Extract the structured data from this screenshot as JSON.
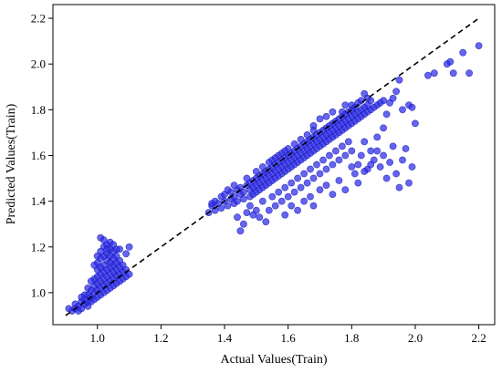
{
  "chart_data": {
    "type": "scatter",
    "title": "",
    "xlabel": "Actual Values(Train)",
    "ylabel": "Predicted Values(Train)",
    "xlim": [
      0.86,
      2.25
    ],
    "ylim": [
      0.86,
      2.26
    ],
    "xticks": [
      1.0,
      1.2,
      1.4,
      1.6,
      1.8,
      2.0,
      2.2
    ],
    "yticks": [
      1.0,
      1.2,
      1.4,
      1.6,
      1.8,
      2.0,
      2.2
    ],
    "xtick_labels": [
      "1.0",
      "1.2",
      "1.4",
      "1.6",
      "1.8",
      "2.0",
      "2.2"
    ],
    "ytick_labels": [
      "1.0",
      "1.2",
      "1.4",
      "1.6",
      "1.8",
      "2.0",
      "2.2"
    ],
    "grid": false,
    "reference_line": {
      "style": "dashed",
      "color": "#000000",
      "from": [
        0.9,
        0.9
      ],
      "to": [
        2.2,
        2.2
      ]
    },
    "point_color": "#2a2ae8",
    "points": [
      [
        0.91,
        0.93
      ],
      [
        0.92,
        0.92
      ],
      [
        0.93,
        0.93
      ],
      [
        0.93,
        0.95
      ],
      [
        0.94,
        0.92
      ],
      [
        0.94,
        0.94
      ],
      [
        0.95,
        0.93
      ],
      [
        0.95,
        0.96
      ],
      [
        0.96,
        0.95
      ],
      [
        0.96,
        0.97
      ],
      [
        0.97,
        0.94
      ],
      [
        0.97,
        0.96
      ],
      [
        0.97,
        0.99
      ],
      [
        0.98,
        0.96
      ],
      [
        0.98,
        0.98
      ],
      [
        0.98,
        1.01
      ],
      [
        0.99,
        0.97
      ],
      [
        0.99,
        1.0
      ],
      [
        0.99,
        1.03
      ],
      [
        0.99,
        1.06
      ],
      [
        1.0,
        0.98
      ],
      [
        1.0,
        1.01
      ],
      [
        1.0,
        1.04
      ],
      [
        1.0,
        1.07
      ],
      [
        1.0,
        1.1
      ],
      [
        1.0,
        1.13
      ],
      [
        1.01,
        0.99
      ],
      [
        1.01,
        1.02
      ],
      [
        1.01,
        1.05
      ],
      [
        1.01,
        1.08
      ],
      [
        1.01,
        1.11
      ],
      [
        1.01,
        1.15
      ],
      [
        1.01,
        1.18
      ],
      [
        1.02,
        1.0
      ],
      [
        1.02,
        1.03
      ],
      [
        1.02,
        1.06
      ],
      [
        1.02,
        1.09
      ],
      [
        1.02,
        1.12
      ],
      [
        1.02,
        1.16
      ],
      [
        1.02,
        1.2
      ],
      [
        1.03,
        1.01
      ],
      [
        1.03,
        1.04
      ],
      [
        1.03,
        1.07
      ],
      [
        1.03,
        1.1
      ],
      [
        1.03,
        1.14
      ],
      [
        1.03,
        1.17
      ],
      [
        1.03,
        1.21
      ],
      [
        1.04,
        1.02
      ],
      [
        1.04,
        1.05
      ],
      [
        1.04,
        1.08
      ],
      [
        1.04,
        1.11
      ],
      [
        1.04,
        1.13
      ],
      [
        1.04,
        1.16
      ],
      [
        1.04,
        1.19
      ],
      [
        1.04,
        1.22
      ],
      [
        1.05,
        1.03
      ],
      [
        1.05,
        1.06
      ],
      [
        1.05,
        1.09
      ],
      [
        1.05,
        1.12
      ],
      [
        1.05,
        1.15
      ],
      [
        1.05,
        1.18
      ],
      [
        1.06,
        1.04
      ],
      [
        1.06,
        1.07
      ],
      [
        1.06,
        1.1
      ],
      [
        1.06,
        1.13
      ],
      [
        1.06,
        1.16
      ],
      [
        1.07,
        1.05
      ],
      [
        1.07,
        1.08
      ],
      [
        1.07,
        1.11
      ],
      [
        1.07,
        1.14
      ],
      [
        1.08,
        1.06
      ],
      [
        1.08,
        1.09
      ],
      [
        1.08,
        1.12
      ],
      [
        1.09,
        1.07
      ],
      [
        1.09,
        1.1
      ],
      [
        1.1,
        1.08
      ],
      [
        1.1,
        1.2
      ],
      [
        1.09,
        1.17
      ],
      [
        1.07,
        1.19
      ],
      [
        1.01,
        1.24
      ],
      [
        0.99,
        1.12
      ],
      [
        0.98,
        1.05
      ],
      [
        1.0,
        1.16
      ],
      [
        1.02,
        1.23
      ],
      [
        1.03,
        1.19
      ],
      [
        1.05,
        1.21
      ],
      [
        1.06,
        1.19
      ],
      [
        0.96,
        0.99
      ],
      [
        0.97,
        1.02
      ],
      [
        0.95,
        0.98
      ],
      [
        1.35,
        1.35
      ],
      [
        1.36,
        1.38
      ],
      [
        1.37,
        1.36
      ],
      [
        1.38,
        1.39
      ],
      [
        1.39,
        1.37
      ],
      [
        1.4,
        1.4
      ],
      [
        1.4,
        1.43
      ],
      [
        1.41,
        1.38
      ],
      [
        1.42,
        1.41
      ],
      [
        1.42,
        1.44
      ],
      [
        1.43,
        1.39
      ],
      [
        1.43,
        1.42
      ],
      [
        1.44,
        1.45
      ],
      [
        1.44,
        1.4
      ],
      [
        1.45,
        1.43
      ],
      [
        1.45,
        1.46
      ],
      [
        1.46,
        1.41
      ],
      [
        1.46,
        1.44
      ],
      [
        1.47,
        1.47
      ],
      [
        1.47,
        1.5
      ],
      [
        1.48,
        1.42
      ],
      [
        1.48,
        1.45
      ],
      [
        1.48,
        1.48
      ],
      [
        1.49,
        1.43
      ],
      [
        1.49,
        1.46
      ],
      [
        1.49,
        1.49
      ],
      [
        1.5,
        1.44
      ],
      [
        1.5,
        1.47
      ],
      [
        1.5,
        1.5
      ],
      [
        1.5,
        1.53
      ],
      [
        1.51,
        1.45
      ],
      [
        1.51,
        1.48
      ],
      [
        1.51,
        1.51
      ],
      [
        1.52,
        1.46
      ],
      [
        1.52,
        1.49
      ],
      [
        1.52,
        1.52
      ],
      [
        1.52,
        1.55
      ],
      [
        1.53,
        1.47
      ],
      [
        1.53,
        1.5
      ],
      [
        1.53,
        1.53
      ],
      [
        1.54,
        1.48
      ],
      [
        1.54,
        1.51
      ],
      [
        1.54,
        1.54
      ],
      [
        1.54,
        1.57
      ],
      [
        1.55,
        1.49
      ],
      [
        1.55,
        1.52
      ],
      [
        1.55,
        1.55
      ],
      [
        1.55,
        1.58
      ],
      [
        1.56,
        1.5
      ],
      [
        1.56,
        1.53
      ],
      [
        1.56,
        1.56
      ],
      [
        1.56,
        1.59
      ],
      [
        1.57,
        1.51
      ],
      [
        1.57,
        1.54
      ],
      [
        1.57,
        1.57
      ],
      [
        1.57,
        1.6
      ],
      [
        1.58,
        1.52
      ],
      [
        1.58,
        1.55
      ],
      [
        1.58,
        1.58
      ],
      [
        1.58,
        1.61
      ],
      [
        1.59,
        1.53
      ],
      [
        1.59,
        1.56
      ],
      [
        1.59,
        1.59
      ],
      [
        1.59,
        1.62
      ],
      [
        1.6,
        1.54
      ],
      [
        1.6,
        1.57
      ],
      [
        1.6,
        1.6
      ],
      [
        1.6,
        1.63
      ],
      [
        1.61,
        1.55
      ],
      [
        1.61,
        1.58
      ],
      [
        1.61,
        1.61
      ],
      [
        1.62,
        1.56
      ],
      [
        1.62,
        1.59
      ],
      [
        1.62,
        1.62
      ],
      [
        1.62,
        1.65
      ],
      [
        1.63,
        1.57
      ],
      [
        1.63,
        1.6
      ],
      [
        1.63,
        1.63
      ],
      [
        1.64,
        1.58
      ],
      [
        1.64,
        1.61
      ],
      [
        1.64,
        1.64
      ],
      [
        1.64,
        1.67
      ],
      [
        1.65,
        1.59
      ],
      [
        1.65,
        1.62
      ],
      [
        1.65,
        1.65
      ],
      [
        1.66,
        1.6
      ],
      [
        1.66,
        1.63
      ],
      [
        1.66,
        1.66
      ],
      [
        1.66,
        1.69
      ],
      [
        1.67,
        1.61
      ],
      [
        1.67,
        1.64
      ],
      [
        1.67,
        1.67
      ],
      [
        1.68,
        1.62
      ],
      [
        1.68,
        1.65
      ],
      [
        1.68,
        1.68
      ],
      [
        1.68,
        1.71
      ],
      [
        1.69,
        1.63
      ],
      [
        1.69,
        1.66
      ],
      [
        1.69,
        1.69
      ],
      [
        1.7,
        1.64
      ],
      [
        1.7,
        1.67
      ],
      [
        1.7,
        1.7
      ],
      [
        1.71,
        1.65
      ],
      [
        1.71,
        1.68
      ],
      [
        1.71,
        1.71
      ],
      [
        1.72,
        1.66
      ],
      [
        1.72,
        1.69
      ],
      [
        1.72,
        1.72
      ],
      [
        1.73,
        1.67
      ],
      [
        1.73,
        1.7
      ],
      [
        1.73,
        1.73
      ],
      [
        1.74,
        1.68
      ],
      [
        1.74,
        1.71
      ],
      [
        1.74,
        1.74
      ],
      [
        1.75,
        1.69
      ],
      [
        1.75,
        1.72
      ],
      [
        1.75,
        1.75
      ],
      [
        1.76,
        1.7
      ],
      [
        1.76,
        1.73
      ],
      [
        1.76,
        1.76
      ],
      [
        1.77,
        1.71
      ],
      [
        1.77,
        1.74
      ],
      [
        1.77,
        1.77
      ],
      [
        1.78,
        1.72
      ],
      [
        1.78,
        1.75
      ],
      [
        1.78,
        1.78
      ],
      [
        1.79,
        1.73
      ],
      [
        1.79,
        1.76
      ],
      [
        1.79,
        1.79
      ],
      [
        1.8,
        1.74
      ],
      [
        1.8,
        1.77
      ],
      [
        1.8,
        1.8
      ],
      [
        1.81,
        1.75
      ],
      [
        1.81,
        1.78
      ],
      [
        1.81,
        1.81
      ],
      [
        1.82,
        1.76
      ],
      [
        1.82,
        1.79
      ],
      [
        1.82,
        1.83
      ],
      [
        1.83,
        1.77
      ],
      [
        1.83,
        1.8
      ],
      [
        1.84,
        1.78
      ],
      [
        1.84,
        1.81
      ],
      [
        1.85,
        1.79
      ],
      [
        1.85,
        1.82
      ],
      [
        1.86,
        1.8
      ],
      [
        1.86,
        1.84
      ],
      [
        1.87,
        1.81
      ],
      [
        1.88,
        1.82
      ],
      [
        1.89,
        1.83
      ],
      [
        1.9,
        1.84
      ],
      [
        1.52,
        1.4
      ],
      [
        1.54,
        1.36
      ],
      [
        1.55,
        1.42
      ],
      [
        1.56,
        1.38
      ],
      [
        1.57,
        1.44
      ],
      [
        1.58,
        1.4
      ],
      [
        1.59,
        1.46
      ],
      [
        1.6,
        1.42
      ],
      [
        1.61,
        1.48
      ],
      [
        1.62,
        1.44
      ],
      [
        1.63,
        1.5
      ],
      [
        1.64,
        1.46
      ],
      [
        1.65,
        1.52
      ],
      [
        1.66,
        1.48
      ],
      [
        1.67,
        1.54
      ],
      [
        1.68,
        1.5
      ],
      [
        1.69,
        1.56
      ],
      [
        1.7,
        1.52
      ],
      [
        1.71,
        1.58
      ],
      [
        1.72,
        1.54
      ],
      [
        1.73,
        1.6
      ],
      [
        1.74,
        1.56
      ],
      [
        1.75,
        1.62
      ],
      [
        1.76,
        1.58
      ],
      [
        1.77,
        1.64
      ],
      [
        1.78,
        1.6
      ],
      [
        1.79,
        1.66
      ],
      [
        1.8,
        1.62
      ],
      [
        1.81,
        1.52
      ],
      [
        1.82,
        1.56
      ],
      [
        1.83,
        1.6
      ],
      [
        1.84,
        1.66
      ],
      [
        1.85,
        1.54
      ],
      [
        1.86,
        1.62
      ],
      [
        1.87,
        1.58
      ],
      [
        1.88,
        1.68
      ],
      [
        1.89,
        1.55
      ],
      [
        1.9,
        1.6
      ],
      [
        1.91,
        1.5
      ],
      [
        1.92,
        1.57
      ],
      [
        1.93,
        1.64
      ],
      [
        1.94,
        1.52
      ],
      [
        1.95,
        1.46
      ],
      [
        1.97,
        1.63
      ],
      [
        1.98,
        1.48
      ],
      [
        1.96,
        1.58
      ],
      [
        1.99,
        1.55
      ],
      [
        1.5,
        1.36
      ],
      [
        1.51,
        1.33
      ],
      [
        1.53,
        1.31
      ],
      [
        1.46,
        1.3
      ],
      [
        1.45,
        1.27
      ],
      [
        1.44,
        1.33
      ],
      [
        1.47,
        1.35
      ],
      [
        1.48,
        1.38
      ],
      [
        1.49,
        1.34
      ],
      [
        1.59,
        1.34
      ],
      [
        1.61,
        1.38
      ],
      [
        1.63,
        1.36
      ],
      [
        1.65,
        1.4
      ],
      [
        1.67,
        1.42
      ],
      [
        1.68,
        1.38
      ],
      [
        1.7,
        1.45
      ],
      [
        1.72,
        1.47
      ],
      [
        1.74,
        1.43
      ],
      [
        1.76,
        1.49
      ],
      [
        1.78,
        1.45
      ],
      [
        1.8,
        1.55
      ],
      [
        1.82,
        1.48
      ],
      [
        1.84,
        1.53
      ],
      [
        1.86,
        1.56
      ],
      [
        1.88,
        1.62
      ],
      [
        1.9,
        1.72
      ],
      [
        1.91,
        1.78
      ],
      [
        1.92,
        1.83
      ],
      [
        1.93,
        1.85
      ],
      [
        1.94,
        1.88
      ],
      [
        1.95,
        1.93
      ],
      [
        1.96,
        1.8
      ],
      [
        1.98,
        1.82
      ],
      [
        1.99,
        1.81
      ],
      [
        2.0,
        1.74
      ],
      [
        2.04,
        1.95
      ],
      [
        2.06,
        1.96
      ],
      [
        2.1,
        2.0
      ],
      [
        2.12,
        1.96
      ],
      [
        2.15,
        2.05
      ],
      [
        2.17,
        1.96
      ],
      [
        2.2,
        2.08
      ],
      [
        2.11,
        2.01
      ],
      [
        1.84,
        1.87
      ],
      [
        1.85,
        1.85
      ],
      [
        1.83,
        1.84
      ],
      [
        1.8,
        1.82
      ],
      [
        1.78,
        1.82
      ],
      [
        1.77,
        1.79
      ],
      [
        1.74,
        1.79
      ],
      [
        1.72,
        1.77
      ],
      [
        1.7,
        1.76
      ],
      [
        1.68,
        1.73
      ],
      [
        1.43,
        1.47
      ],
      [
        1.41,
        1.45
      ],
      [
        1.39,
        1.42
      ],
      [
        1.37,
        1.4
      ],
      [
        1.36,
        1.39
      ]
    ]
  }
}
